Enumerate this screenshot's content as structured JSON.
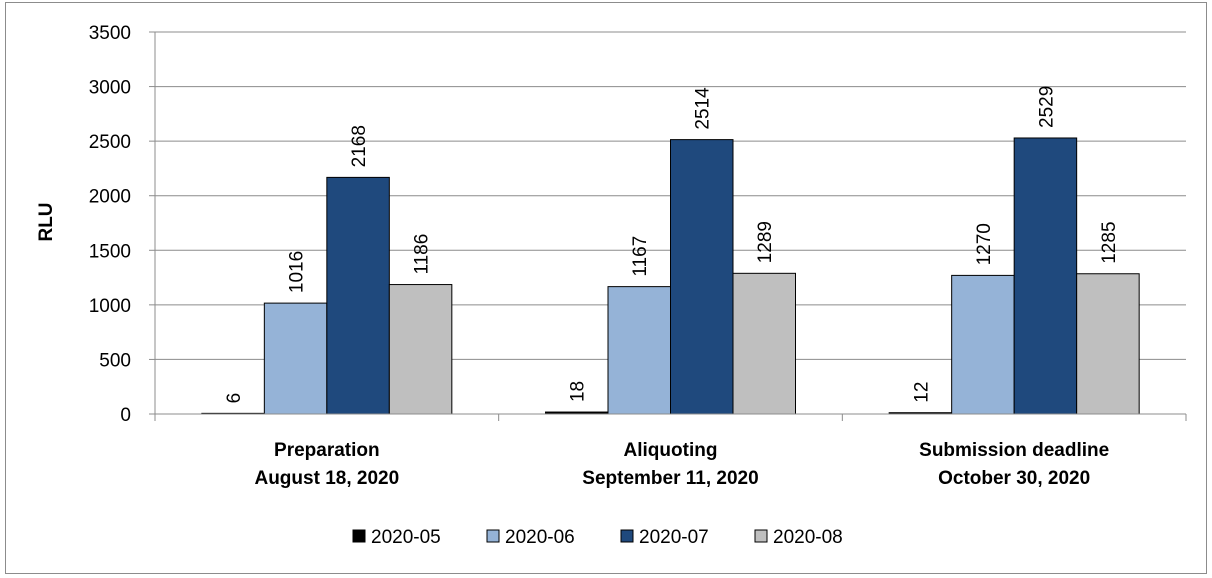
{
  "chart_data": {
    "type": "bar",
    "categories": [
      [
        "Preparation",
        "August 18, 2020"
      ],
      [
        "Aliquoting",
        "September 11, 2020"
      ],
      [
        "Submission deadline",
        "October 30, 2020"
      ]
    ],
    "series": [
      {
        "name": "2020-05",
        "color": "#000000",
        "values": [
          6,
          18,
          12
        ]
      },
      {
        "name": "2020-06",
        "color": "#95b3d7",
        "values": [
          1016,
          1167,
          1270
        ]
      },
      {
        "name": "2020-07",
        "color": "#1f497d",
        "values": [
          2168,
          2514,
          2529
        ]
      },
      {
        "name": "2020-08",
        "color": "#bfbfbf",
        "values": [
          1186,
          1289,
          1285
        ]
      }
    ],
    "ylabel": "RLU",
    "xlabel": "",
    "ylim": [
      0,
      3500
    ],
    "yticks": [
      0,
      500,
      1000,
      1500,
      2000,
      2500,
      3000,
      3500
    ],
    "grid": true,
    "legend_position": "bottom"
  }
}
